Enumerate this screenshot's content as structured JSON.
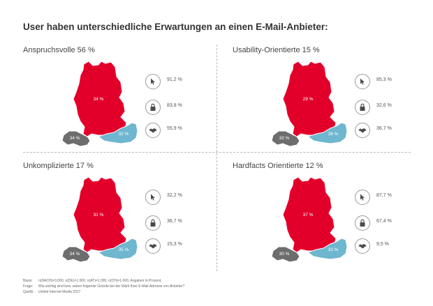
{
  "title": "User haben unterschiedliche Erwartungen an einen E-Mail-Anbieter:",
  "icons": [
    "cursor-icon",
    "lock-icon",
    "handshake-icon"
  ],
  "colors": {
    "germany": "#e2002b",
    "austria": "#6fb6cf",
    "switzerland": "#6d6d6d",
    "label": "#ffffff"
  },
  "panels": [
    {
      "title": "Anspruchsvolle 56 %",
      "map": {
        "de": "34 %",
        "at": "32 %",
        "ch": "34 %"
      },
      "metrics": [
        "91,2 %",
        "83,8 %",
        "55,9 %"
      ]
    },
    {
      "title": "Usability-Orientierte 15 %",
      "map": {
        "de": "29 %",
        "at": "38 %",
        "ch": "33 %"
      },
      "metrics": [
        "85,3 %",
        "32,6 %",
        "36,7 %"
      ]
    },
    {
      "title": "Unkomplizierte 17 %",
      "map": {
        "de": "31 %",
        "at": "35 %",
        "ch": "34 %"
      },
      "metrics": [
        "32,2 %",
        "36,7 %",
        "15,3 %"
      ]
    },
    {
      "title": "Hardfacts Orientierte 12 %",
      "map": {
        "de": "37 %",
        "at": "33 %",
        "ch": "30 %"
      },
      "metrics": [
        "87,7 %",
        "67,4 %",
        "9,5 %"
      ]
    }
  ],
  "chart_data": {
    "type": "table",
    "title": "User haben unterschiedliche Erwartungen an einen E-Mail-Anbieter:",
    "segments": [
      {
        "name": "Anspruchsvolle",
        "share": 56,
        "region_split": {
          "DE": 34,
          "AT": 32,
          "CH": 34
        },
        "cursor": 91.2,
        "lock": 83.8,
        "handshake": 55.9
      },
      {
        "name": "Usability-Orientierte",
        "share": 15,
        "region_split": {
          "DE": 29,
          "AT": 38,
          "CH": 33
        },
        "cursor": 85.3,
        "lock": 32.6,
        "handshake": 36.7
      },
      {
        "name": "Unkomplizierte",
        "share": 17,
        "region_split": {
          "DE": 31,
          "AT": 35,
          "CH": 34
        },
        "cursor": 32.2,
        "lock": 36.7,
        "handshake": 15.3
      },
      {
        "name": "Hardfacts Orientierte",
        "share": 12,
        "region_split": {
          "DE": 37,
          "AT": 33,
          "CH": 30
        },
        "cursor": 87.7,
        "lock": 67.4,
        "handshake": 9.5
      }
    ]
  },
  "footnotes": [
    {
      "key": "Basis:",
      "text": "n(DACH)=3.000, n(DE)=1.000, n(AT)=1.000, n(CH)=1.000, Angaben in Prozent,"
    },
    {
      "key": "Frage:",
      "text": "Wie wichtig sind bzw. wären folgende Gründe bei der Wahl Ihrer E-Mail-Adresse von Anbieter?"
    },
    {
      "key": "Quelle:",
      "text": "United Internet Media 2017"
    }
  ]
}
